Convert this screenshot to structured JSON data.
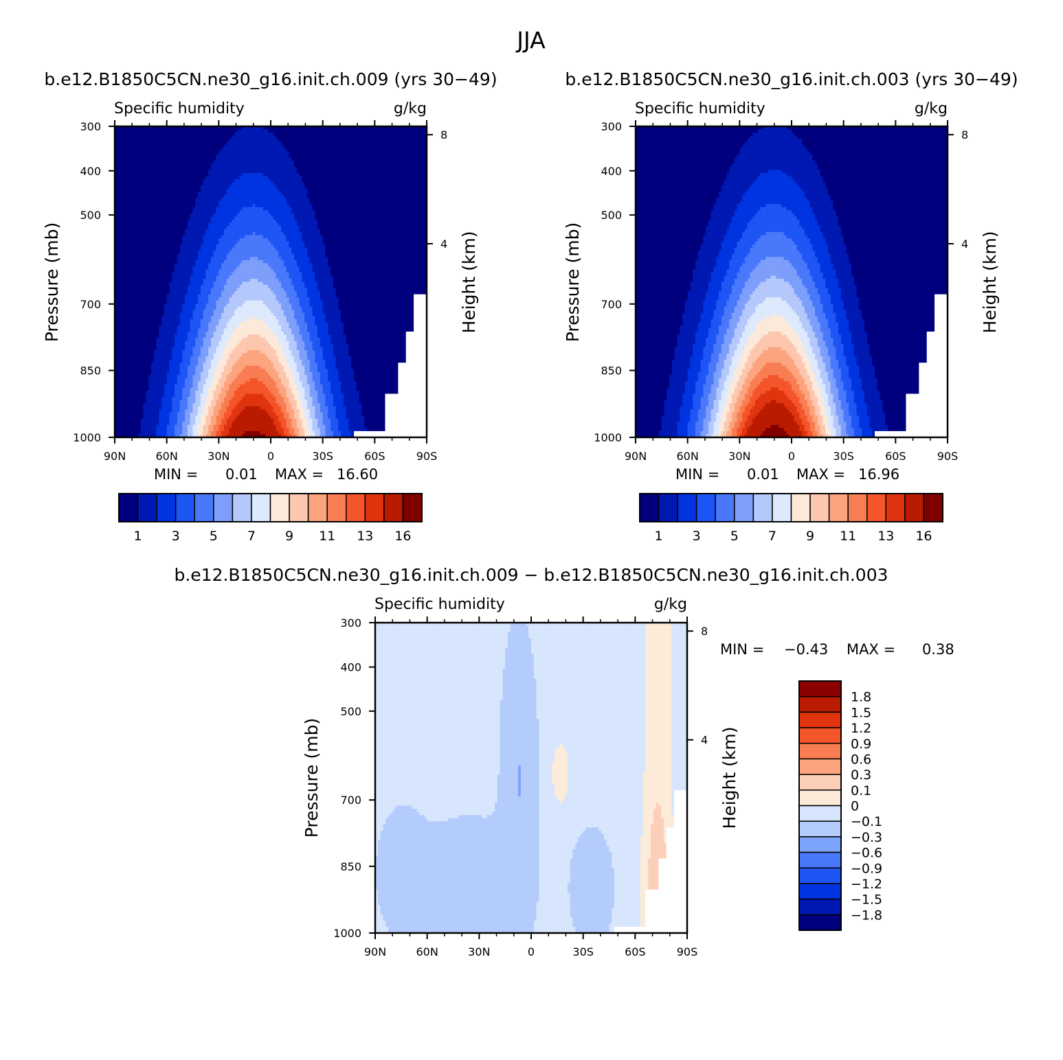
{
  "figure": {
    "title": "JJA",
    "diff_title": "b.e12.B1850C5CN.ne30_g16.init.ch.009 − b.e12.B1850C5CN.ne30_g16.init.ch.003"
  },
  "colors": {
    "main_palette": [
      "#00007f",
      "#0019b2",
      "#0034e0",
      "#1e55f5",
      "#4a78fa",
      "#7d9ffb",
      "#b4c8fc",
      "#dde9fd",
      "#fde9d9",
      "#fcc7ae",
      "#fca47e",
      "#f97d52",
      "#f5552a",
      "#e0340f",
      "#b91b00",
      "#800000"
    ],
    "diff_palette": [
      "#00007f",
      "#0019b2",
      "#0034e0",
      "#1e55f5",
      "#4a78fa",
      "#7da4fb",
      "#b4ccfc",
      "#d7e6fc",
      "#fdebda",
      "#fcd0b8",
      "#fca47e",
      "#f97d52",
      "#f5552a",
      "#e0340f",
      "#b91b00",
      "#8b0000"
    ],
    "missing": "#ffffff"
  },
  "chart_data": [
    {
      "id": "panel1",
      "type": "heatmap",
      "title": "b.e12.B1850C5CN.ne30_g16.init.ch.009 (yrs 30−49)",
      "left_label": "Specific humidity",
      "right_label": "g/kg",
      "xlabel": "",
      "ylabel": "Pressure (mb)",
      "y2label": "Height (km)",
      "x_ticks": [
        "90N",
        "60N",
        "30N",
        "0",
        "30S",
        "60S",
        "90S"
      ],
      "y_ticks": [
        "300",
        "400",
        "500",
        "700",
        "850",
        "1000"
      ],
      "y2_ticks": [
        "8",
        "4"
      ],
      "x_range": [
        "90N",
        "90S"
      ],
      "y_range": [
        1000,
        300
      ],
      "min_label": "MIN =",
      "min_value": "0.01",
      "max_label": "MAX =",
      "max_value": "16.60",
      "min": 0.01,
      "max": 16.6,
      "peak_latitude": 10,
      "colorbar_labels": [
        "1",
        "3",
        "5",
        "7",
        "9",
        "11",
        "13",
        "16"
      ]
    },
    {
      "id": "panel2",
      "type": "heatmap",
      "title": "b.e12.B1850C5CN.ne30_g16.init.ch.003 (yrs 30−49)",
      "left_label": "Specific humidity",
      "right_label": "g/kg",
      "xlabel": "",
      "ylabel": "Pressure (mb)",
      "y2label": "Height (km)",
      "x_ticks": [
        "90N",
        "60N",
        "30N",
        "0",
        "30S",
        "60S",
        "90S"
      ],
      "y_ticks": [
        "300",
        "400",
        "500",
        "700",
        "850",
        "1000"
      ],
      "y2_ticks": [
        "8",
        "4"
      ],
      "x_range": [
        "90N",
        "90S"
      ],
      "y_range": [
        1000,
        300
      ],
      "min_label": "MIN =",
      "min_value": "0.01",
      "max_label": "MAX =",
      "max_value": "16.96",
      "min": 0.01,
      "max": 16.96,
      "peak_latitude": 10,
      "colorbar_labels": [
        "1",
        "3",
        "5",
        "7",
        "9",
        "11",
        "13",
        "16"
      ]
    },
    {
      "id": "panel3",
      "type": "heatmap",
      "title": "",
      "left_label": "Specific humidity",
      "right_label": "g/kg",
      "xlabel": "",
      "ylabel": "Pressure (mb)",
      "y2label": "Height (km)",
      "x_ticks": [
        "90N",
        "60N",
        "30N",
        "0",
        "30S",
        "60S",
        "90S"
      ],
      "y_ticks": [
        "300",
        "400",
        "500",
        "700",
        "850",
        "1000"
      ],
      "y2_ticks": [
        "8",
        "4"
      ],
      "x_range": [
        "90N",
        "90S"
      ],
      "y_range": [
        1000,
        300
      ],
      "min_label": "MIN =",
      "min_value": "−0.43",
      "max_label": "MAX =",
      "max_value": "0.38",
      "min": -0.43,
      "max": 0.38,
      "colorbar_labels": [
        "1.8",
        "1.5",
        "1.2",
        "0.9",
        "0.6",
        "0.3",
        "0.1",
        "0",
        "−0.1",
        "−0.3",
        "−0.6",
        "−0.9",
        "−1.2",
        "−1.5",
        "−1.8"
      ]
    }
  ]
}
